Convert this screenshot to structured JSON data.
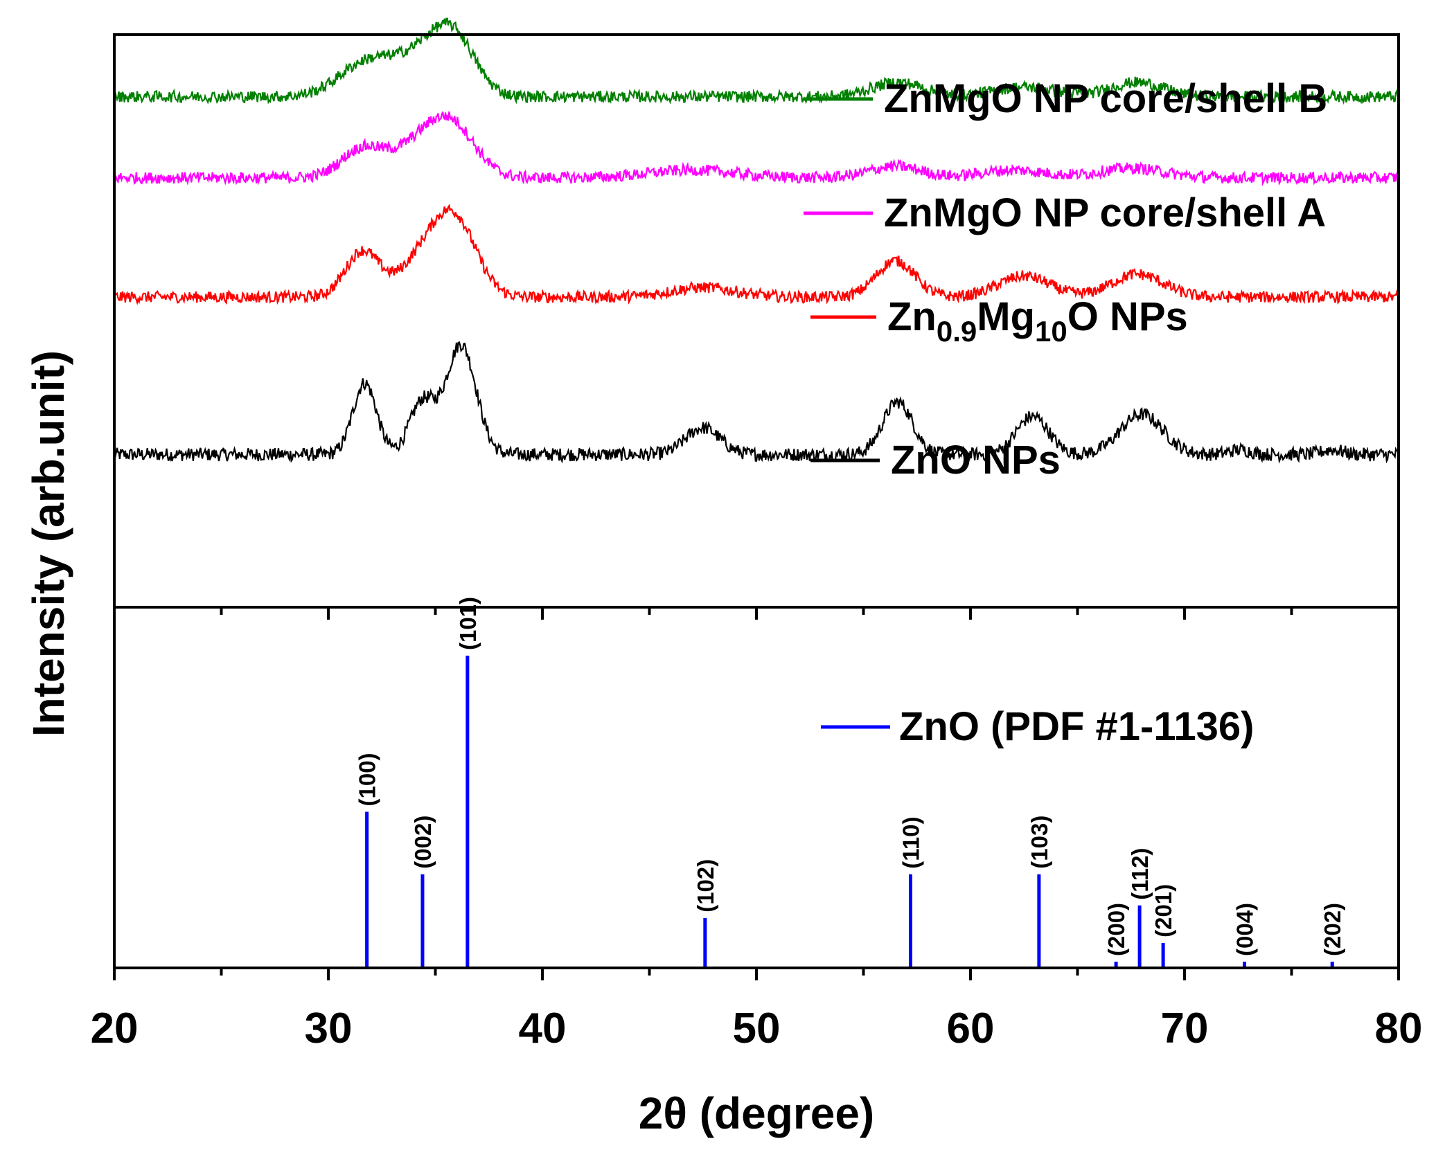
{
  "chart_data": [
    {
      "type": "line",
      "panel": "top",
      "title": "",
      "ylabel": "Intensity (arb.unit)",
      "xlim": [
        20,
        80
      ],
      "ylim": [
        0,
        6
      ],
      "yticks_labeled": false,
      "series": [
        {
          "name": "ZnO NPs",
          "label": "ZnO NPs",
          "color": "#000000",
          "baseline": 1.6,
          "noise": 0.07,
          "peaks": [
            [
              31.7,
              0.75,
              0.55
            ],
            [
              34.4,
              0.55,
              0.6
            ],
            [
              36.2,
              1.15,
              0.7
            ],
            [
              47.5,
              0.28,
              0.8
            ],
            [
              56.6,
              0.55,
              0.7
            ],
            [
              62.9,
              0.4,
              0.75
            ],
            [
              68.0,
              0.42,
              1.0
            ],
            [
              72.6,
              0.05,
              0.5
            ],
            [
              76.9,
              0.05,
              0.5
            ]
          ]
        },
        {
          "name": "Zn0.9Mg10O NPs",
          "label_main": "Zn",
          "label_sub1": "0.9",
          "label_mid": "Mg",
          "label_sub2": "10",
          "label_end": "O NPs",
          "color": "#ff0000",
          "baseline": 3.25,
          "noise": 0.06,
          "peaks": [
            [
              31.6,
              0.48,
              0.8
            ],
            [
              34.3,
              0.35,
              1.0
            ],
            [
              35.9,
              0.8,
              1.0
            ],
            [
              47.5,
              0.1,
              1.5
            ],
            [
              56.5,
              0.38,
              0.9
            ],
            [
              62.5,
              0.22,
              1.2
            ],
            [
              67.8,
              0.24,
              1.2
            ]
          ]
        },
        {
          "name": "ZnMgO NP core/shell A",
          "label": "ZnMgO NP core/shell A",
          "color": "#ff00ff",
          "baseline": 4.5,
          "noise": 0.06,
          "peaks": [
            [
              31.6,
              0.3,
              1.0
            ],
            [
              34.2,
              0.3,
              1.2
            ],
            [
              35.8,
              0.5,
              1.1
            ],
            [
              47.0,
              0.08,
              2.0
            ],
            [
              56.5,
              0.12,
              1.2
            ],
            [
              62.0,
              0.08,
              1.5
            ],
            [
              67.5,
              0.1,
              1.5
            ]
          ]
        },
        {
          "name": "ZnMgO NP core/shell B",
          "label": "ZnMgO NP core/shell B",
          "color": "#007f00",
          "baseline": 5.35,
          "noise": 0.06,
          "peaks": [
            [
              31.8,
              0.35,
              1.3
            ],
            [
              34.5,
              0.4,
              1.3
            ],
            [
              35.9,
              0.5,
              1.0
            ],
            [
              56.6,
              0.15,
              1.2
            ],
            [
              62.5,
              0.1,
              1.5
            ],
            [
              67.8,
              0.15,
              1.2
            ]
          ]
        }
      ]
    },
    {
      "type": "bar",
      "panel": "bottom",
      "xlabel": "2θ (degree)",
      "xlim": [
        20,
        80
      ],
      "xticks": [
        20,
        30,
        40,
        50,
        60,
        70,
        80
      ],
      "xtick_labels": [
        "20",
        "30",
        "40",
        "50",
        "60",
        "70",
        "80"
      ],
      "ylim": [
        0,
        100
      ],
      "reference": {
        "name": "ZnO (PDF #1-1136)",
        "label": "ZnO (PDF #1-1136)",
        "color": "#0000ff"
      },
      "peaks": [
        {
          "hkl": "(100)",
          "x": 31.8,
          "intensity": 50
        },
        {
          "hkl": "(002)",
          "x": 34.4,
          "intensity": 30
        },
        {
          "hkl": "(101)",
          "x": 36.5,
          "intensity": 100
        },
        {
          "hkl": "(102)",
          "x": 47.6,
          "intensity": 16
        },
        {
          "hkl": "(110)",
          "x": 57.2,
          "intensity": 30
        },
        {
          "hkl": "(103)",
          "x": 63.2,
          "intensity": 30
        },
        {
          "hkl": "(200)",
          "x": 66.8,
          "intensity": 2
        },
        {
          "hkl": "(112)",
          "x": 67.9,
          "intensity": 20
        },
        {
          "hkl": "(201)",
          "x": 69.0,
          "intensity": 8
        },
        {
          "hkl": "(004)",
          "x": 72.8,
          "intensity": 2
        },
        {
          "hkl": "(202)",
          "x": 76.9,
          "intensity": 2
        }
      ]
    }
  ]
}
